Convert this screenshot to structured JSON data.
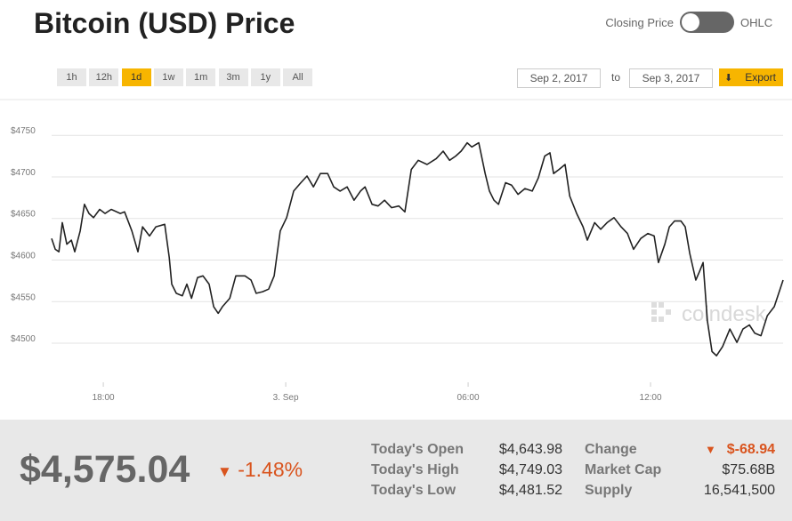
{
  "header": {
    "title": "Bitcoin (USD) Price",
    "toggle_left": "Closing Price",
    "toggle_right": "OHLC"
  },
  "controls": {
    "ranges": [
      "1h",
      "12h",
      "1d",
      "1w",
      "1m",
      "3m",
      "1y",
      "All"
    ],
    "active_range": 2,
    "date_from": "Sep 2, 2017",
    "date_separator": "to",
    "date_to": "Sep 3, 2017",
    "export": "Export"
  },
  "chart_data": {
    "type": "line",
    "color": "#222222",
    "watermark": "coindesk",
    "grid": true,
    "x": [
      -7.7,
      -7.58,
      -7.46,
      -7.35,
      -7.2,
      -7.05,
      -6.94,
      -6.76,
      -6.62,
      -6.47,
      -6.32,
      -6.12,
      -5.94,
      -5.74,
      -5.44,
      -5.3,
      -5.06,
      -4.86,
      -4.71,
      -4.48,
      -4.27,
      -3.98,
      -3.83,
      -3.75,
      -3.6,
      -3.4,
      -3.25,
      -3.1,
      -2.9,
      -2.72,
      -2.52,
      -2.37,
      -2.22,
      -2.08,
      -1.84,
      -1.64,
      -1.34,
      -1.14,
      -0.97,
      -0.76,
      -0.56,
      -0.38,
      -0.18,
      0.03,
      0.26,
      0.5,
      0.7,
      0.91,
      1.14,
      1.38,
      1.58,
      1.79,
      2.02,
      2.25,
      2.46,
      2.61,
      2.84,
      3.04,
      3.25,
      3.48,
      3.72,
      3.92,
      4.13,
      4.36,
      4.65,
      4.95,
      5.18,
      5.39,
      5.59,
      5.77,
      5.97,
      6.12,
      6.35,
      6.56,
      6.7,
      6.85,
      7.0,
      7.23,
      7.43,
      7.64,
      7.87,
      8.11,
      8.31,
      8.52,
      8.69,
      8.81,
      8.99,
      9.19,
      9.34,
      9.57,
      9.78,
      9.92,
      10.16,
      10.36,
      10.57,
      10.8,
      11.03,
      11.24,
      11.44,
      11.68,
      11.91,
      12.12,
      12.26,
      12.47,
      12.62,
      12.79,
      13.0,
      13.14,
      13.29,
      13.49,
      13.61,
      13.73,
      13.87,
      14.02,
      14.17,
      14.37,
      14.61,
      14.84,
      15.04,
      15.25,
      15.43,
      15.63,
      15.84,
      16.07,
      16.36
    ],
    "values": [
      4626,
      4613,
      4610,
      4645,
      4619,
      4624,
      4610,
      4635,
      4667,
      4656,
      4651,
      4661,
      4656,
      4661,
      4656,
      4658,
      4635,
      4610,
      4640,
      4629,
      4640,
      4643,
      4603,
      4571,
      4560,
      4557,
      4571,
      4554,
      4579,
      4581,
      4571,
      4544,
      4536,
      4544,
      4554,
      4581,
      4581,
      4576,
      4560,
      4562,
      4565,
      4581,
      4635,
      4651,
      4683,
      4693,
      4701,
      4688,
      4704,
      4704,
      4688,
      4683,
      4688,
      4672,
      4683,
      4688,
      4667,
      4665,
      4672,
      4663,
      4665,
      4658,
      4709,
      4720,
      4715,
      4722,
      4731,
      4720,
      4725,
      4731,
      4741,
      4736,
      4741,
      4704,
      4683,
      4672,
      4667,
      4693,
      4690,
      4679,
      4686,
      4683,
      4699,
      4725,
      4729,
      4704,
      4709,
      4715,
      4677,
      4656,
      4640,
      4624,
      4645,
      4637,
      4645,
      4651,
      4640,
      4632,
      4613,
      4626,
      4632,
      4629,
      4597,
      4619,
      4640,
      4647,
      4647,
      4640,
      4608,
      4576,
      4586,
      4597,
      4527,
      4490,
      4485,
      4496,
      4517,
      4501,
      4517,
      4522,
      4512,
      4509,
      4533,
      4544,
      4576
    ],
    "xlim": [
      -7.7,
      16.36
    ],
    "ylim": [
      4453,
      4793
    ],
    "xticks": [
      {
        "value": -6,
        "label": "18:00"
      },
      {
        "value": 0,
        "label": "3. Sep"
      },
      {
        "value": 6,
        "label": "06:00"
      },
      {
        "value": 12,
        "label": "12:00"
      }
    ],
    "yticks": [
      {
        "value": 4500,
        "label": "$4500"
      },
      {
        "value": 4550,
        "label": "$4550"
      },
      {
        "value": 4600,
        "label": "$4600"
      },
      {
        "value": 4650,
        "label": "$4650"
      },
      {
        "value": 4700,
        "label": "$4700"
      },
      {
        "value": 4750,
        "label": "$4750"
      }
    ]
  },
  "summary": {
    "price": "$4,575.04",
    "change_percent": "-1.48%"
  },
  "stats": {
    "rows": [
      [
        "Today's Open",
        "$4,643.98",
        "Change",
        "$-68.94"
      ],
      [
        "Today's High",
        "$4,749.03",
        "Market Cap",
        "$75.68B"
      ],
      [
        "Today's Low",
        "$4,481.52",
        "Supply",
        "16,541,500"
      ]
    ]
  }
}
